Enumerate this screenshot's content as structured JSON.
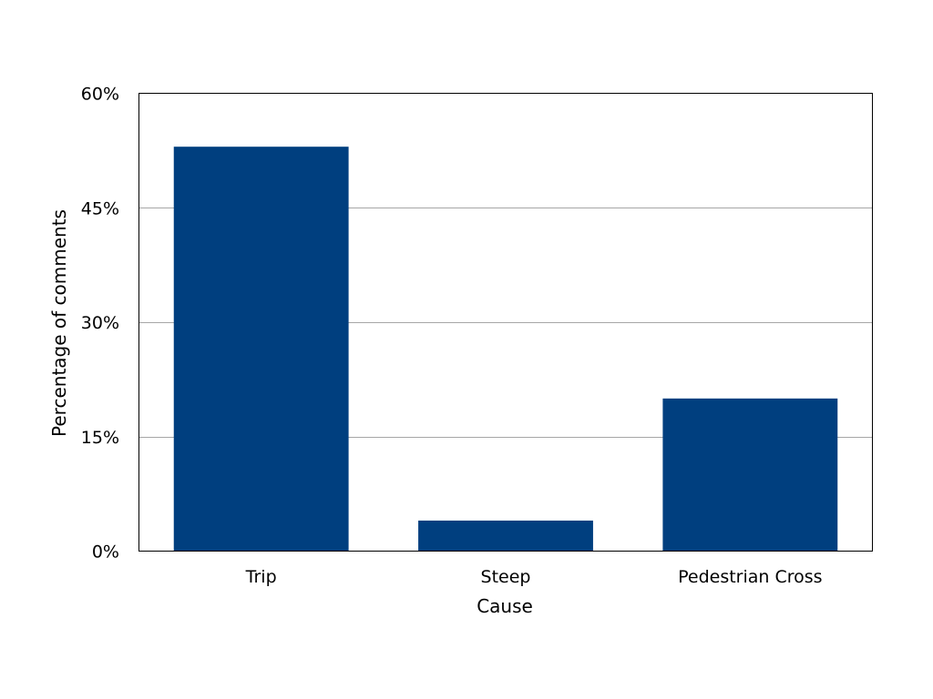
{
  "chart_data": {
    "type": "bar",
    "categories": [
      "Trip",
      "Steep",
      "Pedestrian Cross"
    ],
    "values": [
      53,
      4,
      20
    ],
    "title": "",
    "xlabel": "Cause",
    "ylabel": "Percentage of comments",
    "ylim": [
      0,
      60
    ],
    "yticks": [
      0,
      15,
      30,
      45,
      60
    ],
    "ytick_labels": [
      "0%",
      "15%",
      "30%",
      "45%",
      "60%"
    ],
    "grid": true,
    "legend": "none",
    "bar_color": "#003f7f"
  }
}
